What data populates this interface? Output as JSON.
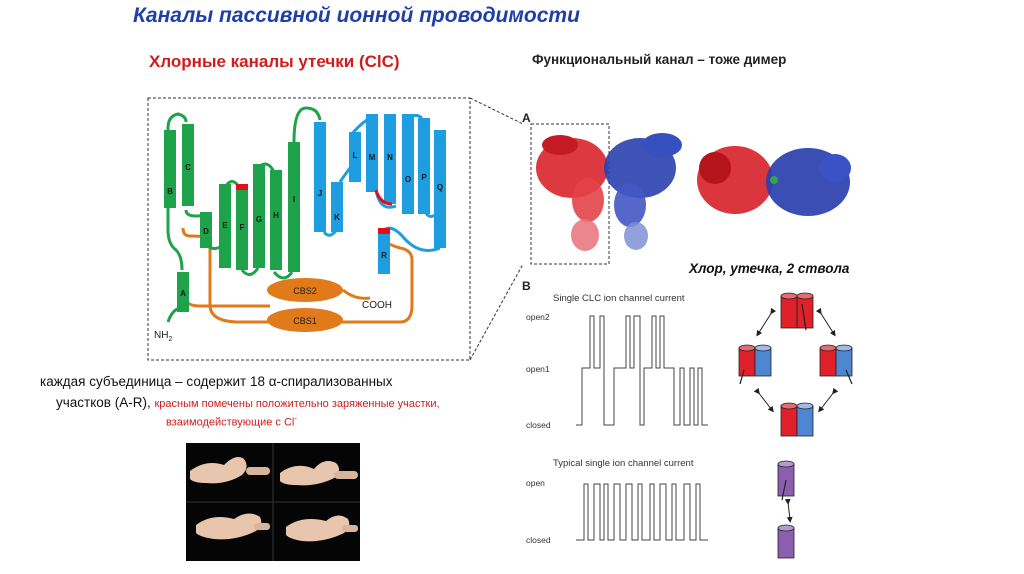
{
  "title": "Каналы пассивной ионной проводимости",
  "subtitle": "Хлорные каналы утечки (ClC)",
  "right_title": "Функциональный канал – тоже димер",
  "description": {
    "line1": "каждая субъединица – содержит 18 α-спирализованных",
    "line2": "участков (A-R),",
    "red_line2": "красным помечены положительно заряженные участки,",
    "red_line3": "взаимодействующие с Cl",
    "red_sup": "-"
  },
  "diagram": {
    "helix_labels": [
      "A",
      "B",
      "C",
      "D",
      "E",
      "F",
      "G",
      "H",
      "I",
      "J",
      "K",
      "L",
      "M",
      "N",
      "O",
      "P",
      "Q",
      "R"
    ],
    "domain_labels": [
      "CBS2",
      "CBS1"
    ],
    "cooh": "COOH",
    "nh2": "NH",
    "nh2_sub": "2",
    "colors": {
      "green": "#1fa34a",
      "blue": "#1e9ee0",
      "red": "#e0101a",
      "orange": "#e07a1a"
    }
  },
  "structure": {
    "panel_label": "A",
    "monomer_colors": [
      "#d8242c",
      "#2a3fae"
    ]
  },
  "dimer_label": "Хлор, утечка, 2 ствола",
  "currents": {
    "panel_label": "B",
    "clc": {
      "title": "Single CLC ion channel current",
      "levels": [
        "open2",
        "open1",
        "closed"
      ]
    },
    "typical": {
      "title": "Typical single ion channel current",
      "levels": [
        "open",
        "closed"
      ]
    }
  }
}
